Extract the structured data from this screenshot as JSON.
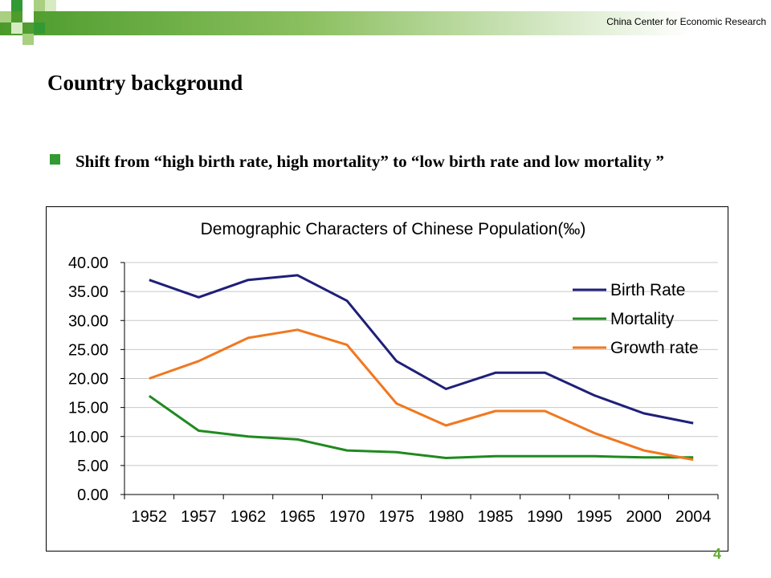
{
  "header": {
    "org": "China Center for Economic Research"
  },
  "slide": {
    "title": "Country background",
    "bullet": "Shift from “high birth rate, high mortality” to “low birth rate and low mortality ”",
    "page_number": "4"
  },
  "colors": {
    "accent_green": "#339933",
    "birth_rate": "#1f1f7a",
    "mortality": "#1f8a1f",
    "growth_rate": "#f07820"
  },
  "chart_data": {
    "type": "line",
    "title": "Demographic Characters of Chinese Population(‰)",
    "xlabel": "",
    "ylabel": "",
    "categories": [
      "1952",
      "1957",
      "1962",
      "1965",
      "1970",
      "1975",
      "1980",
      "1985",
      "1990",
      "1995",
      "2000",
      "2004"
    ],
    "ylim": [
      0,
      40
    ],
    "yticks": [
      "0.00",
      "5.00",
      "10.00",
      "15.00",
      "20.00",
      "25.00",
      "30.00",
      "35.00",
      "40.00"
    ],
    "grid": true,
    "legend": "top-right",
    "series": [
      {
        "name": "Birth Rate",
        "color": "#1f1f7a",
        "values": [
          37.0,
          34.0,
          37.0,
          37.8,
          33.4,
          23.0,
          18.2,
          21.0,
          21.0,
          17.1,
          14.0,
          12.3
        ]
      },
      {
        "name": "Mortality",
        "color": "#1f8a1f",
        "values": [
          17.0,
          11.0,
          10.0,
          9.5,
          7.6,
          7.3,
          6.3,
          6.6,
          6.6,
          6.6,
          6.4,
          6.4
        ]
      },
      {
        "name": "Growth rate",
        "color": "#f07820",
        "values": [
          20.0,
          23.0,
          27.0,
          28.4,
          25.8,
          15.7,
          11.9,
          14.4,
          14.4,
          10.6,
          7.6,
          6.0
        ]
      }
    ]
  }
}
